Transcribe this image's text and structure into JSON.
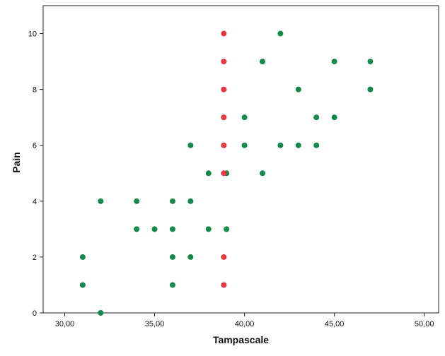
{
  "chart_data": {
    "type": "scatter",
    "title": "",
    "xlabel": "Tampascale",
    "ylabel": "Pain",
    "xlim": [
      28.8,
      50.8
    ],
    "ylim": [
      0,
      11
    ],
    "x_ticks": [
      30,
      35,
      40,
      45,
      50
    ],
    "x_tick_labels": [
      "30,00",
      "35,00",
      "40,00",
      "45,00",
      "50,00"
    ],
    "y_ticks": [
      0,
      2,
      4,
      6,
      8,
      10
    ],
    "y_tick_labels": [
      "0",
      "2",
      "4",
      "6",
      "8",
      "10"
    ],
    "grid": false,
    "legend": "none",
    "colors": {
      "green": "#148a4a",
      "red": "#e8383f",
      "axis": "#222222",
      "background": "#ffffff"
    },
    "series": [
      {
        "color": "#148a4a",
        "points": [
          {
            "x": 31,
            "y": 2
          },
          {
            "x": 31,
            "y": 1
          },
          {
            "x": 32,
            "y": 4
          },
          {
            "x": 32,
            "y": 0
          },
          {
            "x": 34,
            "y": 4
          },
          {
            "x": 34,
            "y": 3
          },
          {
            "x": 35,
            "y": 3
          },
          {
            "x": 36,
            "y": 4
          },
          {
            "x": 36,
            "y": 3
          },
          {
            "x": 36,
            "y": 2
          },
          {
            "x": 36,
            "y": 1
          },
          {
            "x": 37,
            "y": 6
          },
          {
            "x": 37,
            "y": 4
          },
          {
            "x": 37,
            "y": 2
          },
          {
            "x": 38,
            "y": 5
          },
          {
            "x": 38,
            "y": 3
          },
          {
            "x": 39,
            "y": 5
          },
          {
            "x": 39,
            "y": 3
          },
          {
            "x": 40,
            "y": 7
          },
          {
            "x": 40,
            "y": 6
          },
          {
            "x": 41,
            "y": 9
          },
          {
            "x": 41,
            "y": 5
          },
          {
            "x": 42,
            "y": 10
          },
          {
            "x": 42,
            "y": 6
          },
          {
            "x": 43,
            "y": 8
          },
          {
            "x": 43,
            "y": 6
          },
          {
            "x": 44,
            "y": 7
          },
          {
            "x": 44,
            "y": 6
          },
          {
            "x": 45,
            "y": 9
          },
          {
            "x": 45,
            "y": 7
          },
          {
            "x": 47,
            "y": 9
          },
          {
            "x": 47,
            "y": 8
          }
        ]
      },
      {
        "color": "#e8383f",
        "points": [
          {
            "x": 38.85,
            "y": 10
          },
          {
            "x": 38.85,
            "y": 9
          },
          {
            "x": 38.85,
            "y": 8
          },
          {
            "x": 38.85,
            "y": 7
          },
          {
            "x": 38.85,
            "y": 6
          },
          {
            "x": 38.85,
            "y": 5
          },
          {
            "x": 38.85,
            "y": 2
          },
          {
            "x": 38.85,
            "y": 1
          }
        ]
      }
    ]
  }
}
